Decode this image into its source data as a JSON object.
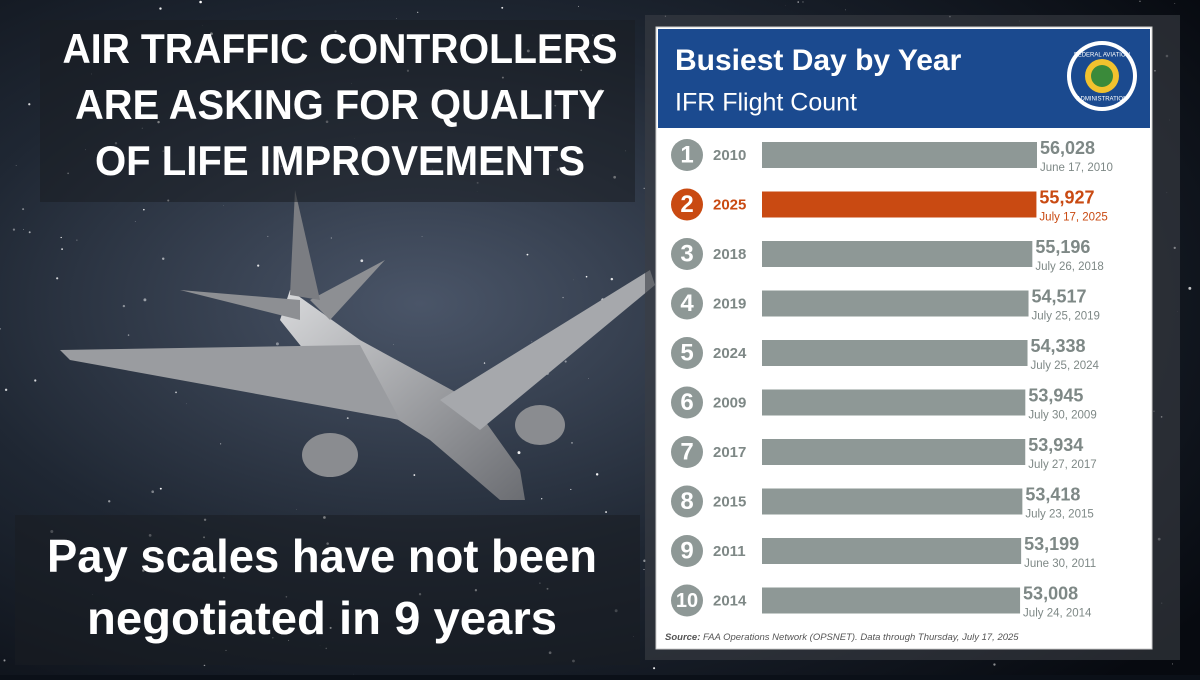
{
  "headline": [
    "AIR TRAFFIC CONTROLLERS",
    "ARE ASKING FOR QUALITY",
    "OF LIFE IMPROVEMENTS"
  ],
  "caption": [
    "Pay scales have not been",
    "negotiated in 9 years"
  ],
  "logo_text": [
    "FEDERAL AVIATION",
    "ADMINISTRATION"
  ],
  "chart_data": {
    "type": "bar",
    "orientation": "horizontal",
    "title": "Busiest Day by Year",
    "subtitle": "IFR Flight Count",
    "ranks": [
      1,
      2,
      3,
      4,
      5,
      6,
      7,
      8,
      9,
      10
    ],
    "categories": [
      "2010",
      "2025",
      "2018",
      "2019",
      "2024",
      "2009",
      "2017",
      "2015",
      "2011",
      "2014"
    ],
    "values": [
      56028,
      55927,
      55196,
      54517,
      54338,
      53945,
      53934,
      53418,
      53199,
      53008
    ],
    "value_labels": [
      "56,028",
      "55,927",
      "55,196",
      "54,517",
      "54,338",
      "53,945",
      "53,934",
      "53,418",
      "53,199",
      "53,008"
    ],
    "dates": [
      "June 17, 2010",
      "July 17, 2025",
      "July 26, 2018",
      "July 25, 2019",
      "July 25, 2024",
      "July 30, 2009",
      "July 27, 2017",
      "July 23, 2015",
      "June 30, 2011",
      "July 24, 2014"
    ],
    "color": "#8e9896",
    "highlight": 1,
    "highlight_color": "#c94a12",
    "xlim": [
      7000,
      56028
    ],
    "source_label": "Source:",
    "source": "FAA Operations Network (OPSNET). Data through Thursday, July 17, 2025"
  }
}
